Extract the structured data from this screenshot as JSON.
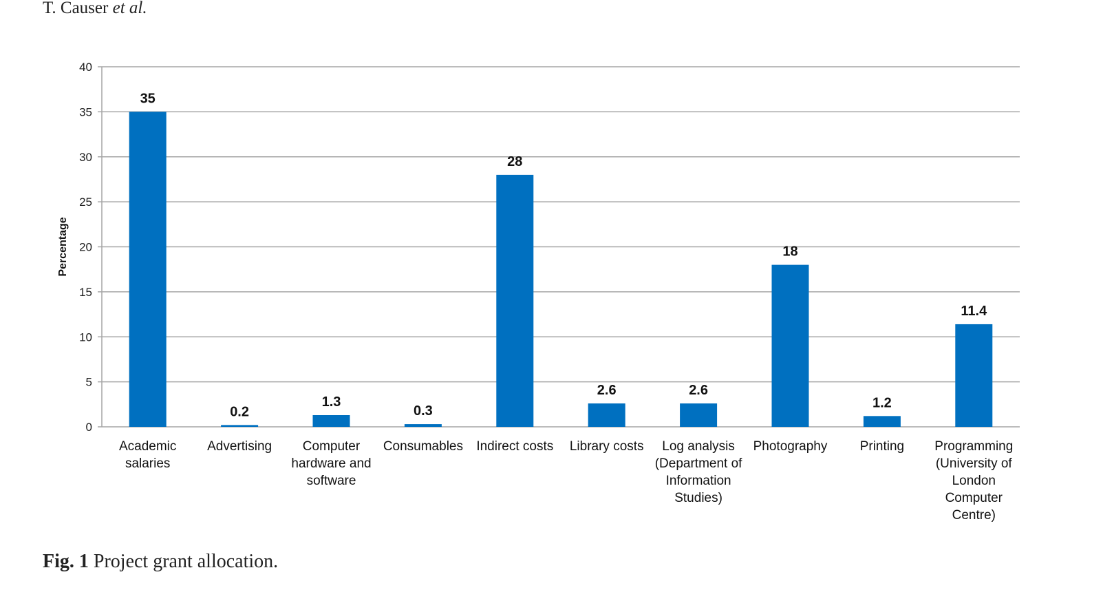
{
  "running_head": {
    "author": "T. Causer",
    "suffix": "et al."
  },
  "caption": {
    "label": "Fig. 1",
    "text": "Project grant allocation."
  },
  "colors": {
    "bar": "#0070C0",
    "grid": "#a6a6a6"
  },
  "chart_data": {
    "type": "bar",
    "title": "",
    "xlabel": "",
    "ylabel": "Percentage",
    "ylim": [
      0,
      40
    ],
    "yticks": [
      0,
      5,
      10,
      15,
      20,
      25,
      30,
      35,
      40
    ],
    "grid": true,
    "categories": [
      [
        "Academic",
        "salaries"
      ],
      [
        "Advertising"
      ],
      [
        "Computer",
        "hardware and",
        "software"
      ],
      [
        "Consumables"
      ],
      [
        "Indirect costs"
      ],
      [
        "Library costs"
      ],
      [
        "Log analysis",
        "(Department of",
        "Information",
        "Studies)"
      ],
      [
        "Photography"
      ],
      [
        "Printing"
      ],
      [
        "Programming",
        "(University of",
        "London",
        "Computer",
        "Centre)"
      ]
    ],
    "values": [
      35,
      0.2,
      1.3,
      0.3,
      28,
      2.6,
      2.6,
      18,
      1.2,
      11.4
    ],
    "data_labels": [
      "35",
      "0.2",
      "1.3",
      "0.3",
      "28",
      "2.6",
      "2.6",
      "18",
      "1.2",
      "11.4"
    ]
  }
}
